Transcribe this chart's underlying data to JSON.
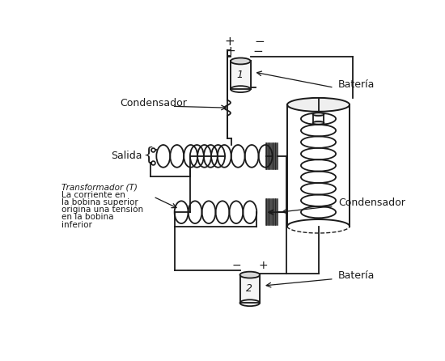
{
  "bg_color": "#ffffff",
  "ink_color": "#1a1a1a",
  "labels": {
    "condensador_top": "Condensador",
    "bateria_top": "Batería",
    "salida": "Salida",
    "transformador": "Transformador (T)",
    "desc1": "La corriente en",
    "desc2": "la bobina superior",
    "desc3": "origina una tensión",
    "desc4": "en la bobina",
    "desc5": "inferior",
    "condensador_bot": "Condensador",
    "bateria_bot": "Batería",
    "plus_top": "+",
    "minus_top": "−",
    "minus_bot": "−",
    "plus_bot": "+",
    "bat1": "1",
    "bat2": "2"
  },
  "figsize": [
    5.5,
    4.46
  ],
  "dpi": 100
}
